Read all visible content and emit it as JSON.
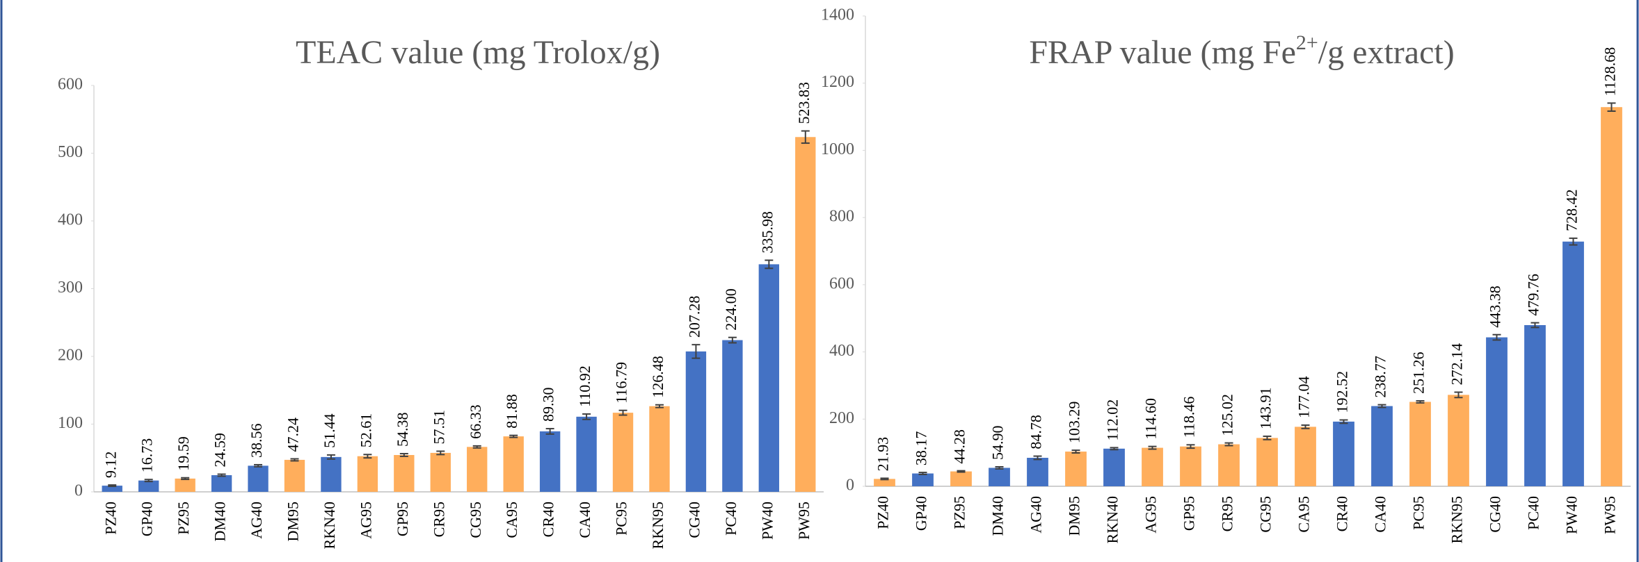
{
  "chart_data": [
    {
      "type": "bar",
      "title": [
        "TEAC value (mg Trolox/g)"
      ],
      "categories": [
        "PZ40",
        "GP40",
        "PZ95",
        "DM40",
        "AG40",
        "DM95",
        "RKN40",
        "AG95",
        "GP95",
        "CR95",
        "CG95",
        "CA95",
        "CR40",
        "CA40",
        "PC95",
        "RKN95",
        "CG40",
        "PC40",
        "PW40",
        "PW95"
      ],
      "values": [
        9.12,
        16.73,
        19.59,
        24.59,
        38.56,
        47.24,
        51.44,
        52.61,
        54.38,
        57.51,
        66.33,
        81.88,
        89.3,
        110.92,
        116.79,
        126.48,
        207.28,
        224,
        335.98,
        523.83
      ],
      "value_labels": [
        "9.12",
        "16.73",
        "19.59",
        "24.59",
        "38.56",
        "47.24",
        "51.44",
        "52.61",
        "54.38",
        "57.51",
        "66.33",
        "81.88",
        "89.30",
        "110.92",
        "116.79",
        "126.48",
        "207.28",
        "224.00",
        "335.98",
        "523.83"
      ],
      "errors": [
        1,
        1.5,
        1.2,
        1.5,
        1.5,
        1.5,
        3,
        2.5,
        2,
        2.5,
        1.5,
        1.5,
        4,
        4,
        3.5,
        2,
        10,
        4,
        6,
        9
      ],
      "colors": [
        "#4472c4",
        "#4472c4",
        "#ffae5c",
        "#4472c4",
        "#4472c4",
        "#ffae5c",
        "#4472c4",
        "#ffae5c",
        "#ffae5c",
        "#ffae5c",
        "#ffae5c",
        "#ffae5c",
        "#4472c4",
        "#4472c4",
        "#ffae5c",
        "#ffae5c",
        "#4472c4",
        "#4472c4",
        "#4472c4",
        "#ffae5c"
      ],
      "ylim": [
        0,
        600
      ],
      "yticks": [
        0,
        100,
        200,
        300,
        400,
        500,
        600
      ],
      "grid": false
    },
    {
      "type": "bar",
      "title": [
        "FRAP value (mg Fe",
        "2+",
        "/g extract)"
      ],
      "categories": [
        "PZ40",
        "GP40",
        "PZ95",
        "DM40",
        "AG40",
        "DM95",
        "RKN40",
        "AG95",
        "GP95",
        "CR95",
        "CG95",
        "CA95",
        "CR40",
        "CA40",
        "PC95",
        "RKN95",
        "CG40",
        "PC40",
        "PW40",
        "PW95"
      ],
      "values": [
        21.93,
        38.17,
        44.28,
        54.9,
        84.78,
        103.29,
        112.02,
        114.6,
        118.46,
        125.02,
        143.91,
        177.04,
        192.52,
        238.77,
        251.26,
        272.14,
        443.38,
        479.76,
        728.42,
        1128.68
      ],
      "value_labels": [
        "21.93",
        "38.17",
        "44.28",
        "54.90",
        "84.78",
        "103.29",
        "112.02",
        "114.60",
        "118.46",
        "125.02",
        "143.91",
        "177.04",
        "192.52",
        "238.77",
        "251.26",
        "272.14",
        "443.38",
        "479.76",
        "728.42",
        "1128.68"
      ],
      "errors": [
        2,
        3,
        2,
        3,
        5,
        4,
        3,
        4,
        5,
        4,
        5,
        5,
        5,
        4,
        3,
        8,
        8,
        7,
        10,
        12
      ],
      "colors": [
        "#ffae5c",
        "#4472c4",
        "#ffae5c",
        "#4472c4",
        "#4472c4",
        "#ffae5c",
        "#4472c4",
        "#ffae5c",
        "#ffae5c",
        "#ffae5c",
        "#ffae5c",
        "#ffae5c",
        "#4472c4",
        "#4472c4",
        "#ffae5c",
        "#ffae5c",
        "#4472c4",
        "#4472c4",
        "#4472c4",
        "#ffae5c"
      ],
      "ylim": [
        0,
        1400
      ],
      "yticks": [
        0,
        200,
        400,
        600,
        800,
        1000,
        1200,
        1400
      ],
      "grid": false
    }
  ]
}
